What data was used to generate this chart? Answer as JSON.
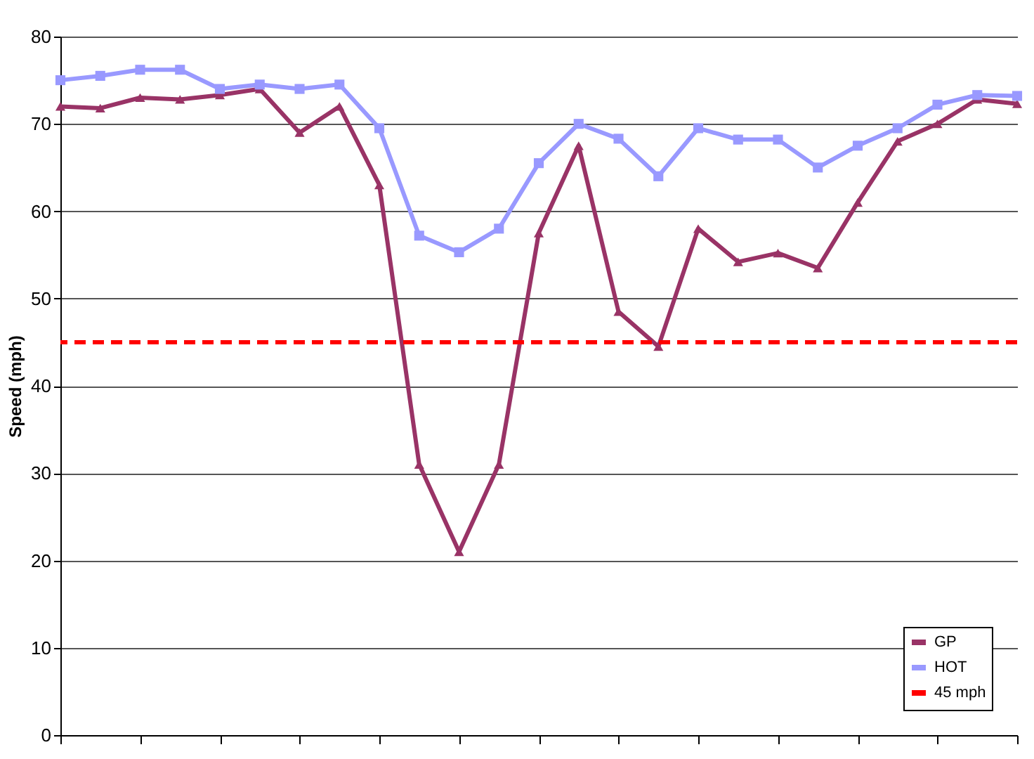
{
  "chart_data": {
    "type": "line",
    "ylabel": "Speed (mph)",
    "categories": [
      null,
      null,
      null,
      null,
      null,
      null,
      null,
      null,
      null,
      null,
      null,
      null,
      null,
      null,
      null,
      null,
      null,
      null,
      null,
      null,
      null,
      null,
      null,
      null,
      null
    ],
    "series": [
      {
        "name": "GP",
        "color": "#993366",
        "marker": "triangle",
        "values": [
          72,
          71.8,
          73,
          72.8,
          73.3,
          74,
          69,
          72,
          63,
          31,
          21,
          31,
          57.5,
          67.5,
          48.5,
          44.5,
          58,
          54.2,
          55.2,
          53.5,
          61,
          68,
          70,
          72.8,
          72.3
        ]
      },
      {
        "name": "HOT",
        "color": "#9999ff",
        "values": [
          75,
          75.5,
          76.2,
          76.2,
          74,
          74.5,
          74,
          74.5,
          69.5,
          57.2,
          55.3,
          58,
          65.5,
          70,
          68.3,
          64,
          69.5,
          68.2,
          68.2,
          65,
          67.5,
          69.5,
          72.2,
          73.3,
          73.2
        ]
      }
    ],
    "ref_lines": [
      {
        "axis": "y",
        "value": 45,
        "label": "45 mph",
        "color": "#ff0000",
        "line_style": "dashed"
      }
    ],
    "ylim": [
      0,
      80
    ],
    "yticks": [
      0,
      10,
      20,
      30,
      40,
      50,
      60,
      70,
      80
    ],
    "grid": "y",
    "legend": "bottom right",
    "marker": "square",
    "line_style": "solid",
    "tick_labels": "y"
  }
}
